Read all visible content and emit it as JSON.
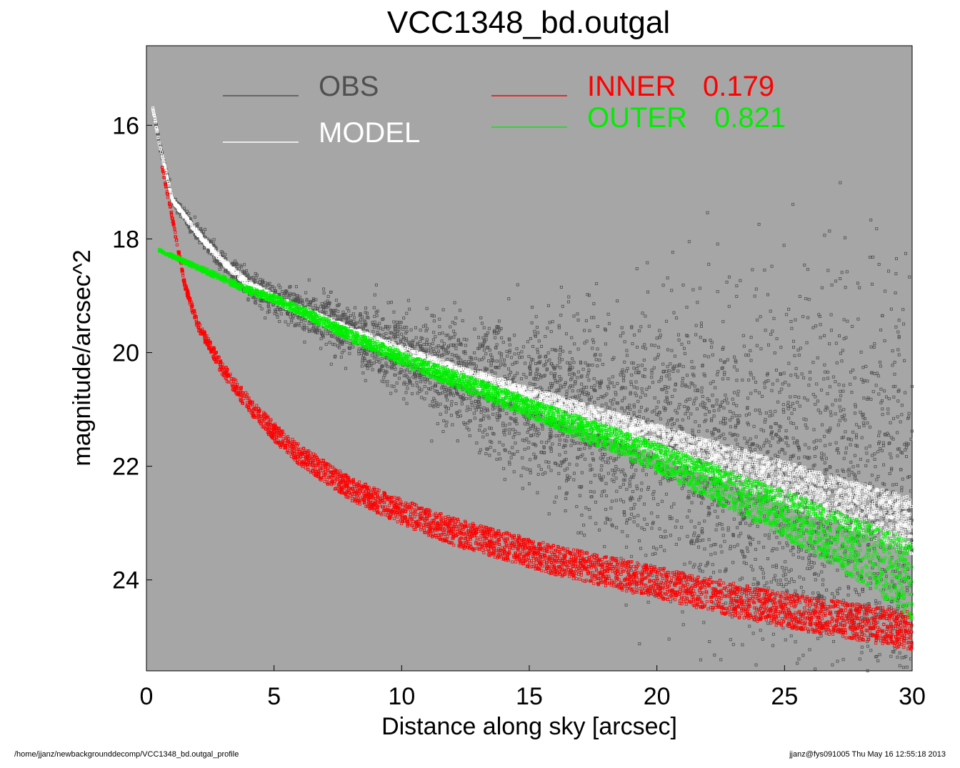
{
  "chart_data": {
    "type": "scatter",
    "title": "VCC1348_bd.outgal",
    "xlabel": "Distance along sky [arcsec]",
    "ylabel": "magnitude/arcsec^2",
    "xlim": [
      0,
      30
    ],
    "ylim": [
      25.6,
      14.6
    ],
    "y_inverted": true,
    "grid": false,
    "background_color": "#a6a6a6",
    "x_ticks": [
      0,
      5,
      10,
      15,
      20,
      25,
      30
    ],
    "y_ticks": [
      16,
      18,
      20,
      22,
      24
    ],
    "legend": [
      {
        "name": "OBS",
        "value": "",
        "color": "#505050",
        "placement": "top-left"
      },
      {
        "name": "MODEL",
        "value": "",
        "color": "#ffffff",
        "placement": "top-left"
      },
      {
        "name": "INNER",
        "value": "0.179",
        "color": "#ff0000",
        "placement": "top-right"
      },
      {
        "name": "OUTER",
        "value": "0.821",
        "color": "#00ee00",
        "placement": "top-right"
      }
    ],
    "series": [
      {
        "name": "OBS",
        "color": "#505050",
        "x": [
          0.25,
          0.5,
          1,
          2,
          3,
          4,
          5,
          6,
          8,
          10,
          12,
          14,
          16,
          18,
          20,
          22,
          24,
          26,
          28,
          30
        ],
        "y": [
          15.7,
          16.3,
          17.3,
          17.9,
          18.4,
          18.8,
          19.05,
          19.25,
          19.65,
          20.0,
          20.35,
          20.65,
          20.95,
          21.25,
          21.55,
          21.85,
          22.15,
          22.45,
          22.75,
          23.05
        ],
        "scatter_mag": [
          0.02,
          0.03,
          0.05,
          0.07,
          0.09,
          0.12,
          0.15,
          0.18,
          0.25,
          0.35,
          0.45,
          0.6,
          0.75,
          0.9,
          1.1,
          1.3,
          1.5,
          1.7,
          1.9,
          2.1
        ]
      },
      {
        "name": "MODEL",
        "color": "#ffffff",
        "x": [
          0.25,
          0.5,
          1,
          2,
          3,
          4,
          5,
          6,
          8,
          10,
          12,
          14,
          16,
          18,
          20,
          22,
          24,
          26,
          28,
          30
        ],
        "y": [
          15.7,
          16.3,
          17.3,
          17.9,
          18.4,
          18.8,
          19.05,
          19.25,
          19.65,
          20.0,
          20.35,
          20.65,
          20.95,
          21.25,
          21.55,
          21.85,
          22.15,
          22.45,
          22.75,
          23.05
        ],
        "band_mag": [
          0.02,
          0.02,
          0.03,
          0.04,
          0.05,
          0.06,
          0.07,
          0.08,
          0.1,
          0.12,
          0.15,
          0.18,
          0.21,
          0.24,
          0.28,
          0.32,
          0.36,
          0.4,
          0.44,
          0.5
        ]
      },
      {
        "name": "INNER",
        "color": "#ff0000",
        "x": [
          0.6,
          1,
          1.5,
          2,
          2.5,
          3,
          4,
          5,
          6,
          8,
          10,
          12,
          14,
          16,
          18,
          20,
          22,
          24,
          26,
          28,
          30
        ],
        "y": [
          16.7,
          17.6,
          18.8,
          19.5,
          19.9,
          20.3,
          20.9,
          21.4,
          21.8,
          22.4,
          22.8,
          23.15,
          23.4,
          23.65,
          23.85,
          24.05,
          24.25,
          24.45,
          24.6,
          24.75,
          24.9
        ],
        "band_mag": [
          0.03,
          0.04,
          0.06,
          0.08,
          0.1,
          0.12,
          0.14,
          0.16,
          0.18,
          0.2,
          0.22,
          0.24,
          0.25,
          0.26,
          0.27,
          0.28,
          0.29,
          0.3,
          0.31,
          0.32,
          0.33
        ]
      },
      {
        "name": "OUTER",
        "color": "#00ee00",
        "x": [
          0.5,
          1,
          2,
          3,
          4,
          5,
          6,
          8,
          10,
          12,
          14,
          16,
          18,
          20,
          22,
          24,
          26,
          28,
          30
        ],
        "y": [
          18.2,
          18.3,
          18.5,
          18.7,
          18.9,
          19.05,
          19.25,
          19.7,
          20.1,
          20.45,
          20.8,
          21.15,
          21.5,
          21.85,
          22.25,
          22.65,
          23.05,
          23.5,
          24.0
        ],
        "band_mag": [
          0.02,
          0.03,
          0.04,
          0.05,
          0.06,
          0.07,
          0.08,
          0.1,
          0.12,
          0.14,
          0.16,
          0.18,
          0.22,
          0.26,
          0.32,
          0.38,
          0.46,
          0.55,
          0.7
        ]
      }
    ]
  },
  "footer": {
    "path": "/home/jjanz/newbackgrounddecomp/VCC1348_bd.outgal_profile",
    "stamp": "jjanz@fys091005  Thu May 16 12:55:18 2013"
  }
}
